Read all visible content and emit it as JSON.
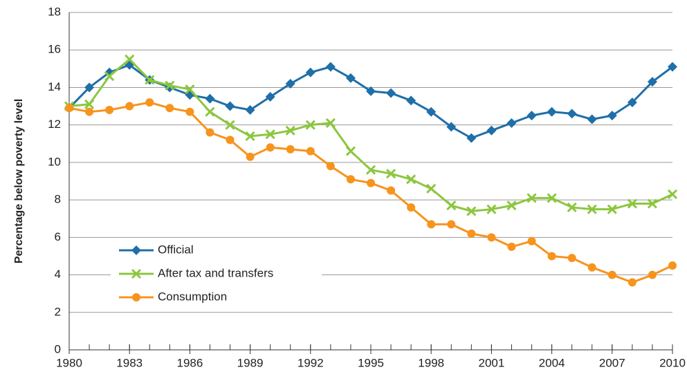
{
  "chart_data": {
    "type": "line",
    "y_label": "Percentage below poverty level",
    "x": [
      1980,
      1981,
      1982,
      1983,
      1984,
      1985,
      1986,
      1987,
      1988,
      1989,
      1990,
      1991,
      1992,
      1993,
      1994,
      1995,
      1996,
      1997,
      1998,
      1999,
      2000,
      2001,
      2002,
      2003,
      2004,
      2005,
      2006,
      2007,
      2008,
      2009,
      2010
    ],
    "series": [
      {
        "name": "Official",
        "color": "#1f6fa8",
        "marker": "diamond",
        "values": [
          12.9,
          14.0,
          14.8,
          15.2,
          14.4,
          14.0,
          13.6,
          13.4,
          13.0,
          12.8,
          13.5,
          14.2,
          14.8,
          15.1,
          14.5,
          13.8,
          13.7,
          13.3,
          12.7,
          11.9,
          11.3,
          11.7,
          12.1,
          12.5,
          12.7,
          12.6,
          12.3,
          12.5,
          13.2,
          14.3,
          15.1
        ]
      },
      {
        "name": "After tax and transfers",
        "color": "#8cc63f",
        "marker": "x",
        "values": [
          13.0,
          13.1,
          14.6,
          15.5,
          14.4,
          14.1,
          13.9,
          12.7,
          12.0,
          11.4,
          11.5,
          11.7,
          12.0,
          12.1,
          10.6,
          9.6,
          9.4,
          9.1,
          8.6,
          7.7,
          7.4,
          7.5,
          7.7,
          8.1,
          8.1,
          7.6,
          7.5,
          7.5,
          7.8,
          7.8,
          8.3
        ]
      },
      {
        "name": "Consumption",
        "color": "#f7941d",
        "marker": "circle",
        "values": [
          12.9,
          12.7,
          12.8,
          13.0,
          13.2,
          12.9,
          12.7,
          11.6,
          11.2,
          10.3,
          10.8,
          10.7,
          10.6,
          9.8,
          9.1,
          8.9,
          8.5,
          7.6,
          6.7,
          6.7,
          6.2,
          6.0,
          5.5,
          5.8,
          5.0,
          4.9,
          4.4,
          4.0,
          3.6,
          4.0,
          4.5
        ]
      }
    ],
    "xlim": [
      1980,
      2010
    ],
    "xticks": [
      1980,
      1983,
      1986,
      1989,
      1992,
      1995,
      1998,
      2001,
      2004,
      2007,
      2010
    ],
    "ylim": [
      0,
      18
    ],
    "yticks": [
      0,
      2,
      4,
      6,
      8,
      10,
      12,
      14,
      16,
      18
    ],
    "grid": true,
    "legend": "lower-left"
  }
}
